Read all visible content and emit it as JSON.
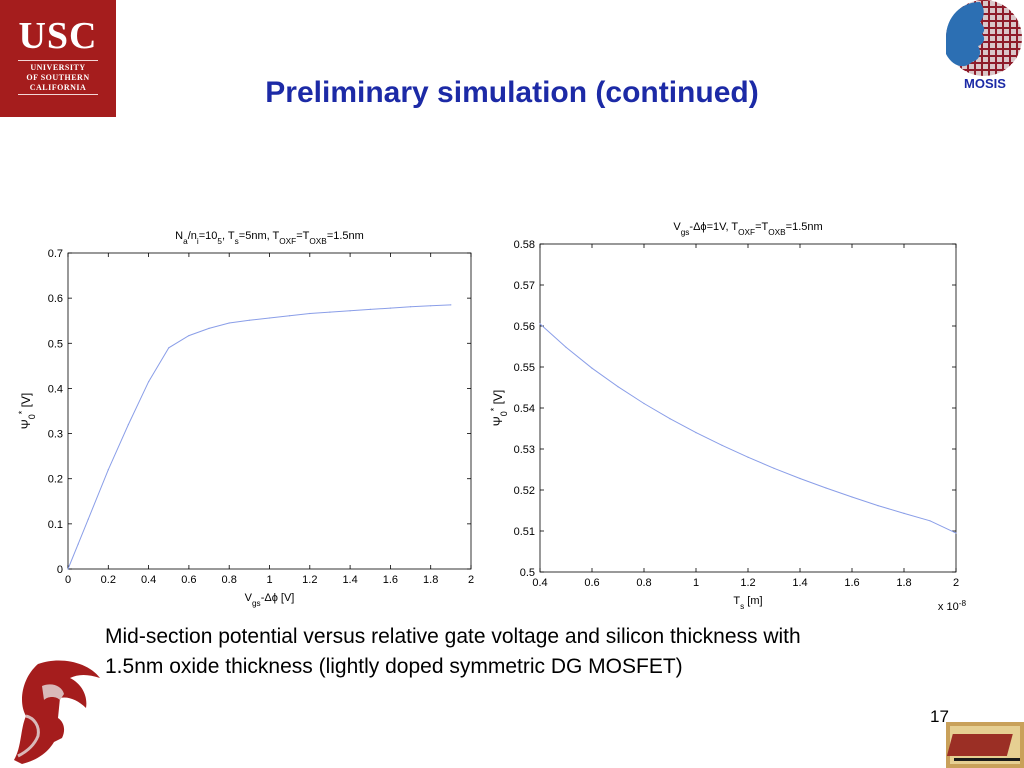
{
  "header": {
    "usc_logo": {
      "big": "USC",
      "line1": "UNIVERSITY",
      "line2": "OF SOUTHERN",
      "line3": "CALIFORNIA"
    },
    "title": "Preliminary simulation (continued)",
    "mosis_label": "MOSIS"
  },
  "chart_data": [
    {
      "type": "line",
      "title_parts": [
        "N",
        "a",
        "/n",
        "i",
        "=10",
        "5",
        ", T",
        "s",
        "=5nm, T",
        "OXF",
        "=T",
        "OXB",
        "=1.5nm"
      ],
      "xlabel_parts": [
        "V",
        "gs",
        "-Δϕ [V]"
      ],
      "ylabel_parts": [
        "Ψ",
        "0",
        "*",
        " [V]"
      ],
      "xlim": [
        0,
        2
      ],
      "ylim": [
        0,
        0.7
      ],
      "xticks": [
        0,
        0.2,
        0.4,
        0.6,
        0.8,
        1,
        1.2,
        1.4,
        1.6,
        1.8,
        2
      ],
      "xtick_labels": [
        "0",
        "0.2",
        "0.4",
        "0.6",
        "0.8",
        "1",
        "1.2",
        "1.4",
        "1.6",
        "1.8",
        "2"
      ],
      "yticks": [
        0,
        0.1,
        0.2,
        0.3,
        0.4,
        0.5,
        0.6,
        0.7
      ],
      "ytick_labels": [
        "0",
        "0.1",
        "0.2",
        "0.3",
        "0.4",
        "0.5",
        "0.6",
        "0.7"
      ],
      "grid": false,
      "line_color": "#8a9ee8",
      "x": [
        0,
        0.05,
        0.1,
        0.2,
        0.3,
        0.4,
        0.5,
        0.6,
        0.7,
        0.8,
        0.9,
        1.0,
        1.1,
        1.2,
        1.3,
        1.4,
        1.5,
        1.6,
        1.7,
        1.8,
        1.9
      ],
      "y": [
        0,
        0.055,
        0.11,
        0.22,
        0.32,
        0.415,
        0.49,
        0.517,
        0.533,
        0.545,
        0.551,
        0.556,
        0.561,
        0.566,
        0.569,
        0.572,
        0.575,
        0.578,
        0.581,
        0.583,
        0.585
      ]
    },
    {
      "type": "line",
      "title_parts": [
        "V",
        "gs",
        "-Δϕ=1V, T",
        "OXF",
        "=T",
        "OXB",
        "=1.5nm"
      ],
      "xlabel_parts": [
        "T",
        "s",
        " [m]"
      ],
      "ylabel_parts": [
        "Ψ",
        "0",
        "*",
        " [V]"
      ],
      "exponent_parts": [
        "x 10",
        "-8"
      ],
      "xlim": [
        0.4,
        2
      ],
      "ylim": [
        0.5,
        0.58
      ],
      "xticks": [
        0.4,
        0.6,
        0.8,
        1,
        1.2,
        1.4,
        1.6,
        1.8,
        2
      ],
      "xtick_labels": [
        "0.4",
        "0.6",
        "0.8",
        "1",
        "1.2",
        "1.4",
        "1.6",
        "1.8",
        "2"
      ],
      "yticks": [
        0.5,
        0.51,
        0.52,
        0.53,
        0.54,
        0.55,
        0.56,
        0.57,
        0.58
      ],
      "ytick_labels": [
        "0.5",
        "0.51",
        "0.52",
        "0.53",
        "0.54",
        "0.55",
        "0.56",
        "0.57",
        "0.58"
      ],
      "grid": false,
      "line_color": "#8a9ee8",
      "x": [
        0.4,
        0.5,
        0.6,
        0.7,
        0.8,
        0.9,
        1.0,
        1.1,
        1.2,
        1.3,
        1.4,
        1.5,
        1.6,
        1.7,
        1.8,
        1.9,
        2.0
      ],
      "y": [
        0.5605,
        0.5548,
        0.5497,
        0.5452,
        0.5411,
        0.5374,
        0.534,
        0.5309,
        0.528,
        0.5253,
        0.5228,
        0.5205,
        0.5183,
        0.5162,
        0.5143,
        0.5125,
        0.5095
      ]
    }
  ],
  "caption": {
    "line1": "Mid-section potential versus relative gate voltage and silicon thickness with",
    "line2": "1.5nm oxide thickness (lightly doped symmetric DG MOSFET)"
  },
  "footer": {
    "page_number": "17"
  },
  "colors": {
    "title": "#1c2aa6",
    "usc_red": "#a51d1d",
    "curve": "#8a9ee8"
  }
}
